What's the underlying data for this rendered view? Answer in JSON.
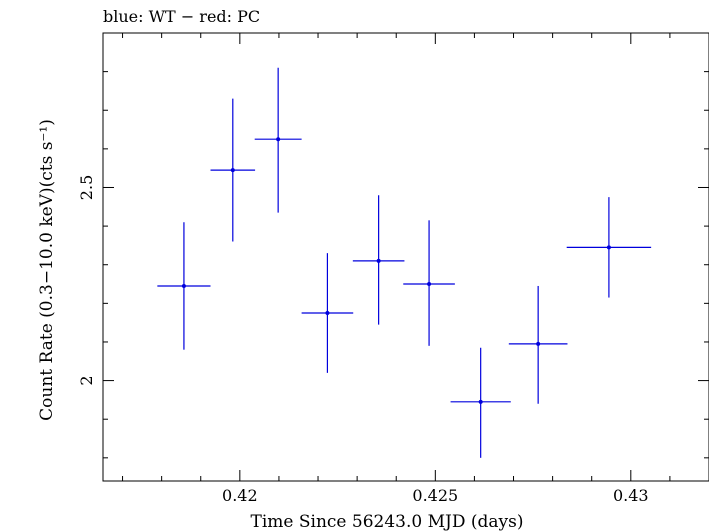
{
  "chart_data": {
    "type": "scatter",
    "title": "blue: WT − red: PC",
    "xlabel": "Time Since 56243.0 MJD (days)",
    "ylabel": "Count Rate (0.3−10.0 keV)(cts s⁻¹)",
    "xlim": [
      0.4165,
      0.432
    ],
    "ylim": [
      1.74,
      2.9
    ],
    "x_major_ticks": [
      0.42,
      0.425,
      0.43
    ],
    "x_tick_labels": [
      "0.42",
      "0.425",
      "0.43"
    ],
    "x_minor_step": 0.001,
    "y_major_ticks": [
      2,
      2.5
    ],
    "y_tick_labels": [
      "2",
      "2.5"
    ],
    "y_minor_step": 0.1,
    "grid": false,
    "legend": "none",
    "series": [
      {
        "color": "#0000dd",
        "points": [
          {
            "x": 0.41857,
            "y": 2.245,
            "xerr": 0.00068,
            "ylo": 2.08,
            "yhi": 2.41
          },
          {
            "x": 0.41982,
            "y": 2.545,
            "xerr": 0.00057,
            "ylo": 2.36,
            "yhi": 2.73
          },
          {
            "x": 0.42098,
            "y": 2.625,
            "xerr": 0.0006,
            "ylo": 2.435,
            "yhi": 2.81
          },
          {
            "x": 0.42224,
            "y": 2.175,
            "xerr": 0.00066,
            "ylo": 2.02,
            "yhi": 2.33
          },
          {
            "x": 0.42355,
            "y": 2.31,
            "xerr": 0.00066,
            "ylo": 2.145,
            "yhi": 2.48
          },
          {
            "x": 0.42484,
            "y": 2.25,
            "xerr": 0.00066,
            "ylo": 2.09,
            "yhi": 2.415
          },
          {
            "x": 0.42616,
            "y": 1.945,
            "xerr": 0.00077,
            "ylo": 1.8,
            "yhi": 2.085
          },
          {
            "x": 0.42763,
            "y": 2.095,
            "xerr": 0.00075,
            "ylo": 1.94,
            "yhi": 2.245
          },
          {
            "x": 0.42944,
            "y": 2.345,
            "xerr": 0.00108,
            "ylo": 2.215,
            "yhi": 2.475
          }
        ]
      }
    ]
  }
}
